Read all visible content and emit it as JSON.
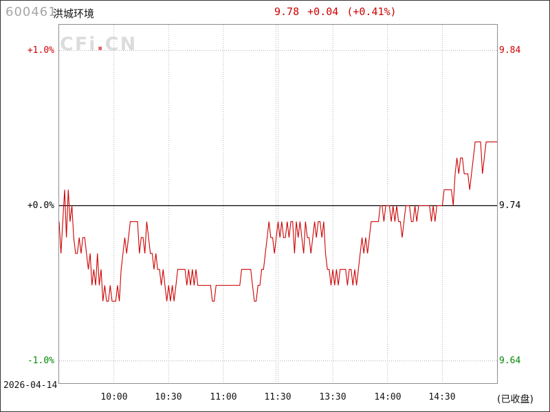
{
  "header": {
    "stock_code": "600461",
    "stock_name": "洪城环境",
    "quote": "9.78 +0.04 (+0.41%)"
  },
  "watermark": {
    "part1": "CFi",
    "dot": ".",
    "part2": "CN"
  },
  "footer": {
    "date": "2026-04-14",
    "status": "(已收盘)"
  },
  "colors": {
    "line": "#cc0000",
    "up": "#cc0000",
    "flat": "#000000",
    "down": "#008800",
    "grid": "#b0b0b0",
    "border": "#8c8c8c",
    "watermark": "#dcdcdc",
    "watermark_dot": "#e06666",
    "code_gray": "#a6a6a6"
  },
  "chart_data": {
    "type": "line",
    "symbol": "600461",
    "name": "洪城环境",
    "last": 9.78,
    "change": 0.04,
    "change_pct": 0.41,
    "prev_close": 9.74,
    "session": [
      "09:30-11:30",
      "13:00-15:00"
    ],
    "x_labels": [
      "10:00",
      "10:30",
      "11:00",
      "11:30",
      "13:30",
      "14:00",
      "14:30"
    ],
    "y_left_labels": [
      {
        "text": "+1.0%",
        "color": "#cc0000"
      },
      {
        "text": "+0.0%",
        "color": "#000000"
      },
      {
        "text": "-1.0%",
        "color": "#008800"
      }
    ],
    "y_right_labels": [
      {
        "text": "9.84",
        "color": "#cc0000"
      },
      {
        "text": "9.74",
        "color": "#000000"
      },
      {
        "text": "9.64",
        "color": "#008800"
      }
    ],
    "ylim_pct": [
      -1.166,
      1.166
    ],
    "grid": true,
    "line_color": "#cc0000",
    "prices": [
      9.73,
      9.71,
      9.73,
      9.75,
      9.72,
      9.75,
      9.73,
      9.74,
      9.72,
      9.71,
      9.71,
      9.72,
      9.71,
      9.72,
      9.72,
      9.71,
      9.7,
      9.71,
      9.69,
      9.7,
      9.69,
      9.71,
      9.69,
      9.7,
      9.68,
      9.69,
      9.68,
      9.68,
      9.69,
      9.68,
      9.68,
      9.68,
      9.69,
      9.68,
      9.7,
      9.71,
      9.72,
      9.71,
      9.72,
      9.73,
      9.73,
      9.73,
      9.73,
      9.73,
      9.71,
      9.72,
      9.72,
      9.71,
      9.73,
      9.72,
      9.71,
      9.71,
      9.7,
      9.71,
      9.7,
      9.7,
      9.69,
      9.7,
      9.69,
      9.68,
      9.69,
      9.68,
      9.69,
      9.68,
      9.69,
      9.7,
      9.7,
      9.7,
      9.7,
      9.7,
      9.69,
      9.7,
      9.69,
      9.7,
      9.69,
      9.7,
      9.69,
      9.69,
      9.69,
      9.69,
      9.69,
      9.69,
      9.69,
      9.69,
      9.68,
      9.68,
      9.69,
      9.69,
      9.69,
      9.69,
      9.69,
      9.69,
      9.69,
      9.69,
      9.69,
      9.69,
      9.69,
      9.69,
      9.69,
      9.69,
      9.7,
      9.7,
      9.7,
      9.7,
      9.7,
      9.7,
      9.69,
      9.68,
      9.68,
      9.69,
      9.69,
      9.7,
      9.7,
      9.71,
      9.72,
      9.73,
      9.72,
      9.72,
      9.71,
      9.72,
      9.73,
      9.72,
      9.73,
      9.72,
      9.72,
      9.73,
      9.72,
      9.73,
      9.73,
      9.71,
      9.73,
      9.72,
      9.73,
      9.72,
      9.71,
      9.73,
      9.72,
      9.72,
      9.71,
      9.72,
      9.73,
      9.72,
      9.73,
      9.73,
      9.72,
      9.73,
      9.71,
      9.7,
      9.7,
      9.69,
      9.7,
      9.69,
      9.7,
      9.69,
      9.7,
      9.7,
      9.7,
      9.7,
      9.69,
      9.7,
      9.7,
      9.69,
      9.7,
      9.69,
      9.7,
      9.71,
      9.72,
      9.71,
      9.72,
      9.71,
      9.72,
      9.73,
      9.73,
      9.73,
      9.73,
      9.73,
      9.74,
      9.74,
      9.73,
      9.74,
      9.74,
      9.74,
      9.73,
      9.74,
      9.73,
      9.74,
      9.73,
      9.73,
      9.72,
      9.73,
      9.74,
      9.74,
      9.74,
      9.73,
      9.73,
      9.74,
      9.73,
      9.74,
      9.74,
      9.74,
      9.74,
      9.74,
      9.74,
      9.74,
      9.73,
      9.74,
      9.73,
      9.74,
      9.74,
      9.74,
      9.74,
      9.75,
      9.75,
      9.75,
      9.75,
      9.75,
      9.74,
      9.76,
      9.77,
      9.76,
      9.77,
      9.77,
      9.76,
      9.76,
      9.76,
      9.75,
      9.76,
      9.77,
      9.78,
      9.78,
      9.78,
      9.78,
      9.76,
      9.77,
      9.78,
      9.78,
      9.78,
      9.78,
      9.78,
      9.78,
      9.78
    ]
  }
}
